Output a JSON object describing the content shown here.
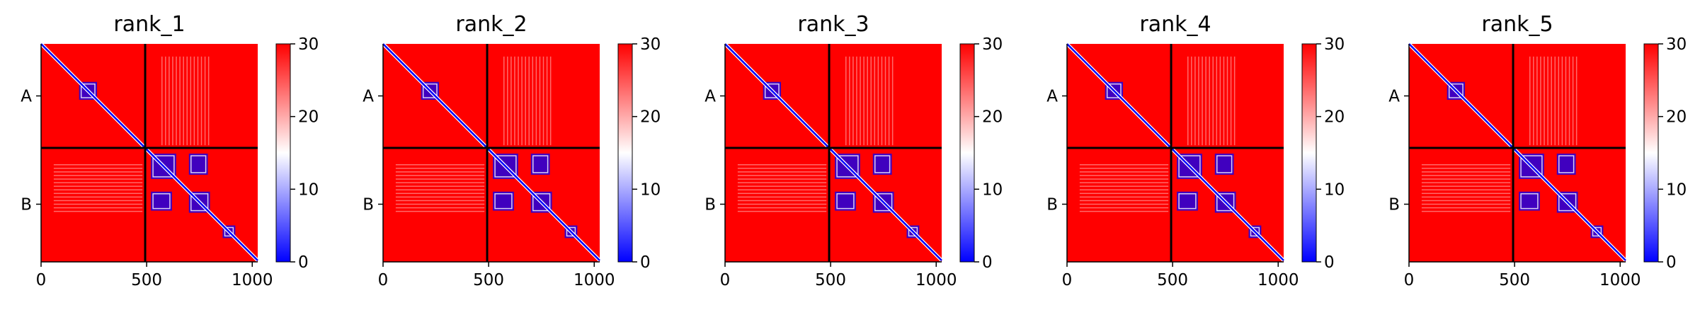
{
  "chart_data": [
    {
      "type": "heatmap",
      "title": "rank_1"
    },
    {
      "type": "heatmap",
      "title": "rank_2"
    },
    {
      "type": "heatmap",
      "title": "rank_3"
    },
    {
      "type": "heatmap",
      "title": "rank_4"
    },
    {
      "type": "heatmap",
      "title": "rank_5"
    }
  ],
  "shared": {
    "matrix_size": 1026,
    "chain_boundary": 493,
    "chains": [
      "A",
      "B"
    ],
    "x_ticks": [
      "0",
      "500",
      "1000"
    ],
    "x_tick_values": [
      0,
      500,
      1000
    ],
    "colorbar": {
      "min": 0,
      "max": 30,
      "ticks": [
        "0",
        "10",
        "20",
        "30"
      ],
      "tick_values": [
        0,
        10,
        20,
        30
      ],
      "colormap": [
        "#0000ff",
        "#ffffff",
        "#ff0000"
      ]
    },
    "background_color": "#ff0000",
    "contact_color": "#0000ff",
    "boundary_line_color": "#000000",
    "contact_blocks": [
      {
        "x0": 180,
        "x1": 265,
        "y0": 180,
        "y1": 265
      },
      {
        "x0": 520,
        "x1": 640,
        "y0": 520,
        "y1": 640
      },
      {
        "x0": 520,
        "x1": 620,
        "y0": 700,
        "y1": 790
      },
      {
        "x0": 700,
        "x1": 790,
        "y0": 520,
        "y1": 620
      },
      {
        "x0": 700,
        "x1": 800,
        "y0": 700,
        "y1": 800
      },
      {
        "x0": 860,
        "x1": 920,
        "y0": 860,
        "y1": 920
      }
    ]
  }
}
